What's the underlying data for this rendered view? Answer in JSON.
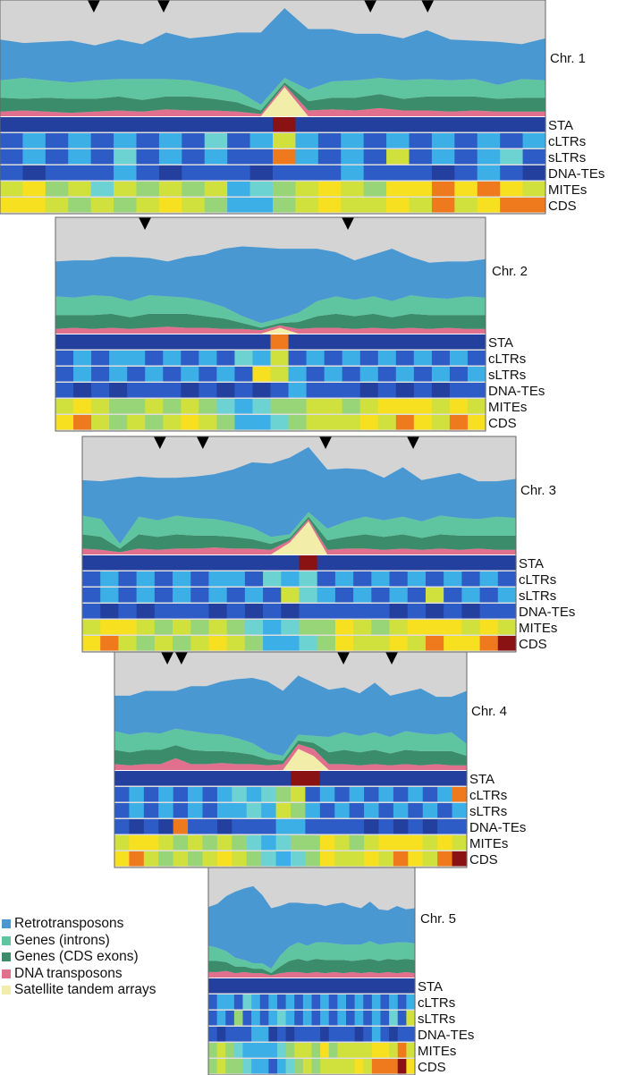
{
  "chart_data": {
    "type": "stacked area + heatmap",
    "colors": {
      "Retrotransposons": "#4a98d2",
      "Genes (introns)": "#5fc4a0",
      "Genes (CDS exons)": "#3a8c6a",
      "DNA transposons": "#e0708e",
      "Satellite tandem arrays": "#f2eeaa",
      "background": "#d4d4d4"
    },
    "legend": [
      "Retrotransposons",
      "Genes (introns)",
      "Genes (CDS exons)",
      "DNA transposons",
      "Satellite tandem arrays"
    ],
    "track_labels": [
      "STA",
      "cLTRs",
      "sLTRs",
      "DNA-TEs",
      "MITEs",
      "CDS"
    ],
    "heatmap_scale": [
      0,
      9
    ],
    "chromosomes": [
      {
        "label": "Chr. 1",
        "retro": [
          0.35,
          0.3,
          0.33,
          0.36,
          0.3,
          0.34,
          0.3,
          0.4,
          0.36,
          0.42,
          0.5,
          0.62,
          0.6,
          0.52,
          0.45,
          0.4,
          0.38,
          0.36,
          0.42,
          0.35,
          0.33,
          0.37,
          0.3,
          0.36
        ],
        "introns": [
          0.15,
          0.18,
          0.15,
          0.14,
          0.16,
          0.15,
          0.18,
          0.15,
          0.14,
          0.12,
          0.1,
          0.05,
          0.04,
          0.1,
          0.14,
          0.15,
          0.14,
          0.16,
          0.15,
          0.14,
          0.15,
          0.12,
          0.16,
          0.15
        ],
        "cds": [
          0.12,
          0.1,
          0.12,
          0.12,
          0.11,
          0.12,
          0.1,
          0.11,
          0.12,
          0.1,
          0.08,
          0.03,
          0.02,
          0.08,
          0.1,
          0.11,
          0.12,
          0.1,
          0.12,
          0.13,
          0.12,
          0.11,
          0.12,
          0.12
        ],
        "dna": [
          0.04,
          0.05,
          0.04,
          0.03,
          0.04,
          0.05,
          0.04,
          0.06,
          0.05,
          0.05,
          0.04,
          0.02,
          0.02,
          0.05,
          0.06,
          0.05,
          0.07,
          0.05,
          0.05,
          0.04,
          0.05,
          0.04,
          0.04,
          0.04
        ],
        "sta": [
          0,
          0,
          0,
          0,
          0,
          0,
          0,
          0,
          0,
          0,
          0,
          0,
          0.25,
          0,
          0,
          0,
          0,
          0,
          0,
          0,
          0,
          0,
          0,
          0
        ],
        "tracks": [
          "111111111111911111111111",
          "232323232423632323232323",
          "232324232322832326232342",
          "212223212221222322212321",
          "675646565634567657787876",
          "776565676533567667686788"
        ]
      },
      {
        "label": "Chr. 2",
        "retro": [
          0.3,
          0.32,
          0.3,
          0.34,
          0.38,
          0.32,
          0.3,
          0.35,
          0.4,
          0.5,
          0.6,
          0.65,
          0.6,
          0.55,
          0.45,
          0.38,
          0.34,
          0.36,
          0.45,
          0.33,
          0.3,
          0.32,
          0.3,
          0.33
        ],
        "introns": [
          0.16,
          0.15,
          0.17,
          0.15,
          0.14,
          0.16,
          0.15,
          0.14,
          0.13,
          0.1,
          0.06,
          0.04,
          0.04,
          0.08,
          0.13,
          0.15,
          0.14,
          0.15,
          0.14,
          0.16,
          0.15,
          0.14,
          0.16,
          0.15
        ],
        "cds": [
          0.12,
          0.11,
          0.12,
          0.12,
          0.1,
          0.12,
          0.11,
          0.12,
          0.1,
          0.09,
          0.05,
          0.02,
          0.02,
          0.06,
          0.1,
          0.12,
          0.11,
          0.12,
          0.1,
          0.12,
          0.12,
          0.11,
          0.12,
          0.12
        ],
        "dna": [
          0.04,
          0.05,
          0.04,
          0.05,
          0.04,
          0.05,
          0.06,
          0.05,
          0.05,
          0.04,
          0.04,
          0.03,
          0.02,
          0.04,
          0.05,
          0.05,
          0.04,
          0.05,
          0.04,
          0.05,
          0.04,
          0.05,
          0.04,
          0.04
        ],
        "sta": [
          0,
          0,
          0,
          0,
          0,
          0,
          0,
          0,
          0,
          0,
          0,
          0,
          0.05,
          0,
          0,
          0,
          0,
          0,
          0,
          0,
          0,
          0,
          0,
          0
        ],
        "tracks": [
          "111111111111811111111111",
          "232332323243623232323232",
          "232323232327632323232323",
          "212122212121232221212122",
          "676556565434556656777676",
          "786565676533456667687687"
        ]
      },
      {
        "label": "Chr. 3",
        "retro": [
          0.3,
          0.32,
          0.55,
          0.34,
          0.36,
          0.32,
          0.35,
          0.38,
          0.45,
          0.55,
          0.62,
          0.65,
          0.55,
          0.5,
          0.45,
          0.4,
          0.36,
          0.42,
          0.35,
          0.33,
          0.38,
          0.32,
          0.3,
          0.33
        ],
        "introns": [
          0.16,
          0.15,
          0.04,
          0.15,
          0.14,
          0.16,
          0.15,
          0.14,
          0.12,
          0.1,
          0.06,
          0.03,
          0.04,
          0.1,
          0.13,
          0.15,
          0.14,
          0.15,
          0.14,
          0.16,
          0.15,
          0.14,
          0.16,
          0.15
        ],
        "cds": [
          0.12,
          0.11,
          0.03,
          0.12,
          0.11,
          0.12,
          0.11,
          0.1,
          0.1,
          0.08,
          0.05,
          0.02,
          0.02,
          0.08,
          0.1,
          0.12,
          0.11,
          0.12,
          0.1,
          0.12,
          0.12,
          0.11,
          0.12,
          0.12
        ],
        "dna": [
          0.05,
          0.04,
          0.02,
          0.05,
          0.04,
          0.05,
          0.05,
          0.06,
          0.05,
          0.05,
          0.04,
          0.02,
          0.02,
          0.04,
          0.05,
          0.05,
          0.04,
          0.05,
          0.04,
          0.05,
          0.04,
          0.05,
          0.04,
          0.04
        ],
        "sta": [
          0,
          0,
          0,
          0,
          0,
          0,
          0,
          0,
          0,
          0,
          0,
          0.1,
          0.28,
          0,
          0,
          0,
          0,
          0,
          0,
          0,
          0,
          0,
          0,
          0
        ],
        "tracks": [
          "111111111111911111111111",
          "232323233243423232323232",
          "232323232326432323262323",
          "212122212121222221212122",
          "677656565434557656777676",
          "786565676533457667687789"
        ]
      },
      {
        "label": "Chr. 4",
        "retro": [
          0.3,
          0.33,
          0.35,
          0.36,
          0.32,
          0.38,
          0.4,
          0.45,
          0.5,
          0.55,
          0.6,
          0.55,
          0.5,
          0.45,
          0.4,
          0.38,
          0.36,
          0.42,
          0.35,
          0.33,
          0.38,
          0.32,
          0.3,
          0.45
        ],
        "introns": [
          0.16,
          0.15,
          0.15,
          0.14,
          0.14,
          0.16,
          0.15,
          0.14,
          0.12,
          0.1,
          0.06,
          0.04,
          0.05,
          0.06,
          0.13,
          0.15,
          0.14,
          0.15,
          0.14,
          0.16,
          0.15,
          0.14,
          0.16,
          0.1
        ],
        "cds": [
          0.12,
          0.11,
          0.12,
          0.12,
          0.11,
          0.12,
          0.11,
          0.1,
          0.1,
          0.08,
          0.05,
          0.03,
          0.03,
          0.05,
          0.1,
          0.12,
          0.11,
          0.12,
          0.1,
          0.12,
          0.12,
          0.11,
          0.12,
          0.08
        ],
        "dna": [
          0.05,
          0.04,
          0.05,
          0.05,
          0.1,
          0.05,
          0.05,
          0.06,
          0.05,
          0.05,
          0.04,
          0.05,
          0.04,
          0.06,
          0.05,
          0.05,
          0.04,
          0.05,
          0.04,
          0.05,
          0.04,
          0.05,
          0.04,
          0.04
        ],
        "sta": [
          0,
          0,
          0,
          0,
          0,
          0,
          0,
          0,
          0,
          0,
          0,
          0,
          0.18,
          0.12,
          0,
          0,
          0,
          0,
          0,
          0,
          0,
          0,
          0,
          0
        ],
        "tracks": [
          "111111111111991111111111",
          "232323234345623232323238",
          "232323233436532323232323",
          "212182212223322221212122",
          "677656565434557656777676",
          "786565676543457667687689"
        ]
      },
      {
        "label": "Chr. 5",
        "retro": [
          0.35,
          0.4,
          0.5,
          0.6,
          0.65,
          0.7,
          0.62,
          0.55,
          0.45,
          0.4,
          0.36,
          0.38,
          0.35,
          0.33,
          0.36,
          0.38,
          0.35,
          0.33,
          0.36,
          0.32,
          0.3,
          0.33,
          0.3,
          0.32
        ],
        "introns": [
          0.14,
          0.12,
          0.1,
          0.08,
          0.06,
          0.05,
          0.05,
          0.04,
          0.1,
          0.13,
          0.15,
          0.14,
          0.15,
          0.16,
          0.15,
          0.14,
          0.15,
          0.14,
          0.16,
          0.15,
          0.14,
          0.16,
          0.15,
          0.15
        ],
        "cds": [
          0.1,
          0.1,
          0.08,
          0.06,
          0.05,
          0.04,
          0.04,
          0.02,
          0.06,
          0.1,
          0.12,
          0.11,
          0.12,
          0.12,
          0.11,
          0.12,
          0.1,
          0.12,
          0.12,
          0.11,
          0.12,
          0.12,
          0.12,
          0.12
        ],
        "dna": [
          0.05,
          0.05,
          0.06,
          0.04,
          0.05,
          0.04,
          0.04,
          0.02,
          0.04,
          0.05,
          0.05,
          0.04,
          0.05,
          0.04,
          0.05,
          0.04,
          0.05,
          0.04,
          0.05,
          0.04,
          0.05,
          0.04,
          0.05,
          0.04
        ],
        "sta": [
          0,
          0,
          0,
          0,
          0,
          0,
          0,
          0,
          0,
          0,
          0,
          0,
          0,
          0,
          0,
          0,
          0,
          0,
          0,
          0,
          0,
          0,
          0,
          0
        ],
        "tracks": [
          "111111111111111111111111",
          "233243232323232323232323",
          "232523234323232323232426",
          "212223312122212221232122",
          "565433334566575666677686",
          "565543323456566667688897"
        ]
      }
    ]
  }
}
